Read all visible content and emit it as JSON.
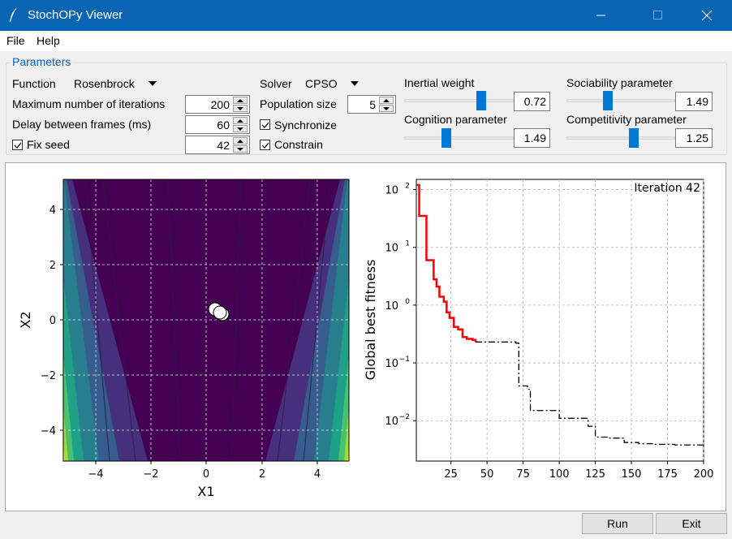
{
  "window": {
    "title": "StochOPy Viewer"
  },
  "menu": {
    "items": [
      "File",
      "Help"
    ]
  },
  "parameters": {
    "legend": "Parameters",
    "function_label": "Function",
    "function_value": "Rosenbrock",
    "max_iter_label": "Maximum number of iterations",
    "max_iter_value": "200",
    "delay_label": "Delay between frames (ms)",
    "delay_value": "60",
    "fix_seed_label": "Fix seed",
    "fix_seed_checked": true,
    "seed_value": "42",
    "solver_label": "Solver",
    "solver_value": "CPSO",
    "popsize_label": "Population size",
    "popsize_value": "5",
    "sync_label": "Synchronize",
    "sync_checked": true,
    "constrain_label": "Constrain",
    "constrain_checked": true,
    "sliders": [
      {
        "label": "Inertial weight",
        "value": "0.72",
        "level": 0.72
      },
      {
        "label": "Cognition parameter",
        "value": "1.49",
        "level": 0.37
      },
      {
        "label": "Sociability parameter",
        "value": "1.49",
        "level": 0.37
      },
      {
        "label": "Competitivity parameter",
        "value": "1.25",
        "level": 0.63
      }
    ]
  },
  "plot_left": {
    "xlabel": "X1",
    "ylabel": "X2",
    "xticks": [
      "−4",
      "−2",
      "0",
      "2",
      "4"
    ],
    "yticks": [
      "4",
      "2",
      "0",
      "−2",
      "−4"
    ],
    "particles": [
      [
        0.3,
        0.4
      ],
      [
        0.5,
        0.2
      ],
      [
        0.6,
        0.25
      ]
    ]
  },
  "chart_data": {
    "type": "line",
    "ylabel": "Global best fitness",
    "annotation": "Iteration 42",
    "xlim": [
      1,
      200
    ],
    "ylim_log": [
      0.002,
      150
    ],
    "xticks": [
      "25",
      "50",
      "75",
      "100",
      "125",
      "150",
      "175",
      "200"
    ],
    "yticks": [
      "10",
      "10",
      "10",
      "10",
      "10"
    ],
    "ytick_exps": [
      "2",
      "1",
      "0",
      "−1",
      "−2"
    ],
    "grid": true,
    "series": [
      {
        "style": "red-solid",
        "x": [
          1,
          3,
          5,
          8,
          13,
          15,
          17,
          20,
          22,
          24,
          27,
          30,
          33,
          36,
          40,
          42
        ],
        "y": [
          120,
          35,
          35,
          6,
          2.8,
          2.1,
          1.4,
          1.15,
          0.75,
          0.6,
          0.42,
          0.38,
          0.28,
          0.26,
          0.25,
          0.23
        ]
      },
      {
        "style": "black-dashdot",
        "x": [
          42,
          50,
          60,
          70,
          72,
          78,
          80,
          90,
          100,
          110,
          120,
          125,
          135,
          145,
          155,
          165,
          180,
          200
        ],
        "y": [
          0.23,
          0.23,
          0.23,
          0.22,
          0.04,
          0.035,
          0.015,
          0.015,
          0.011,
          0.011,
          0.008,
          0.0052,
          0.005,
          0.0042,
          0.004,
          0.0039,
          0.0038,
          0.0037
        ]
      }
    ]
  },
  "buttons": {
    "run": "Run",
    "exit": "Exit"
  }
}
